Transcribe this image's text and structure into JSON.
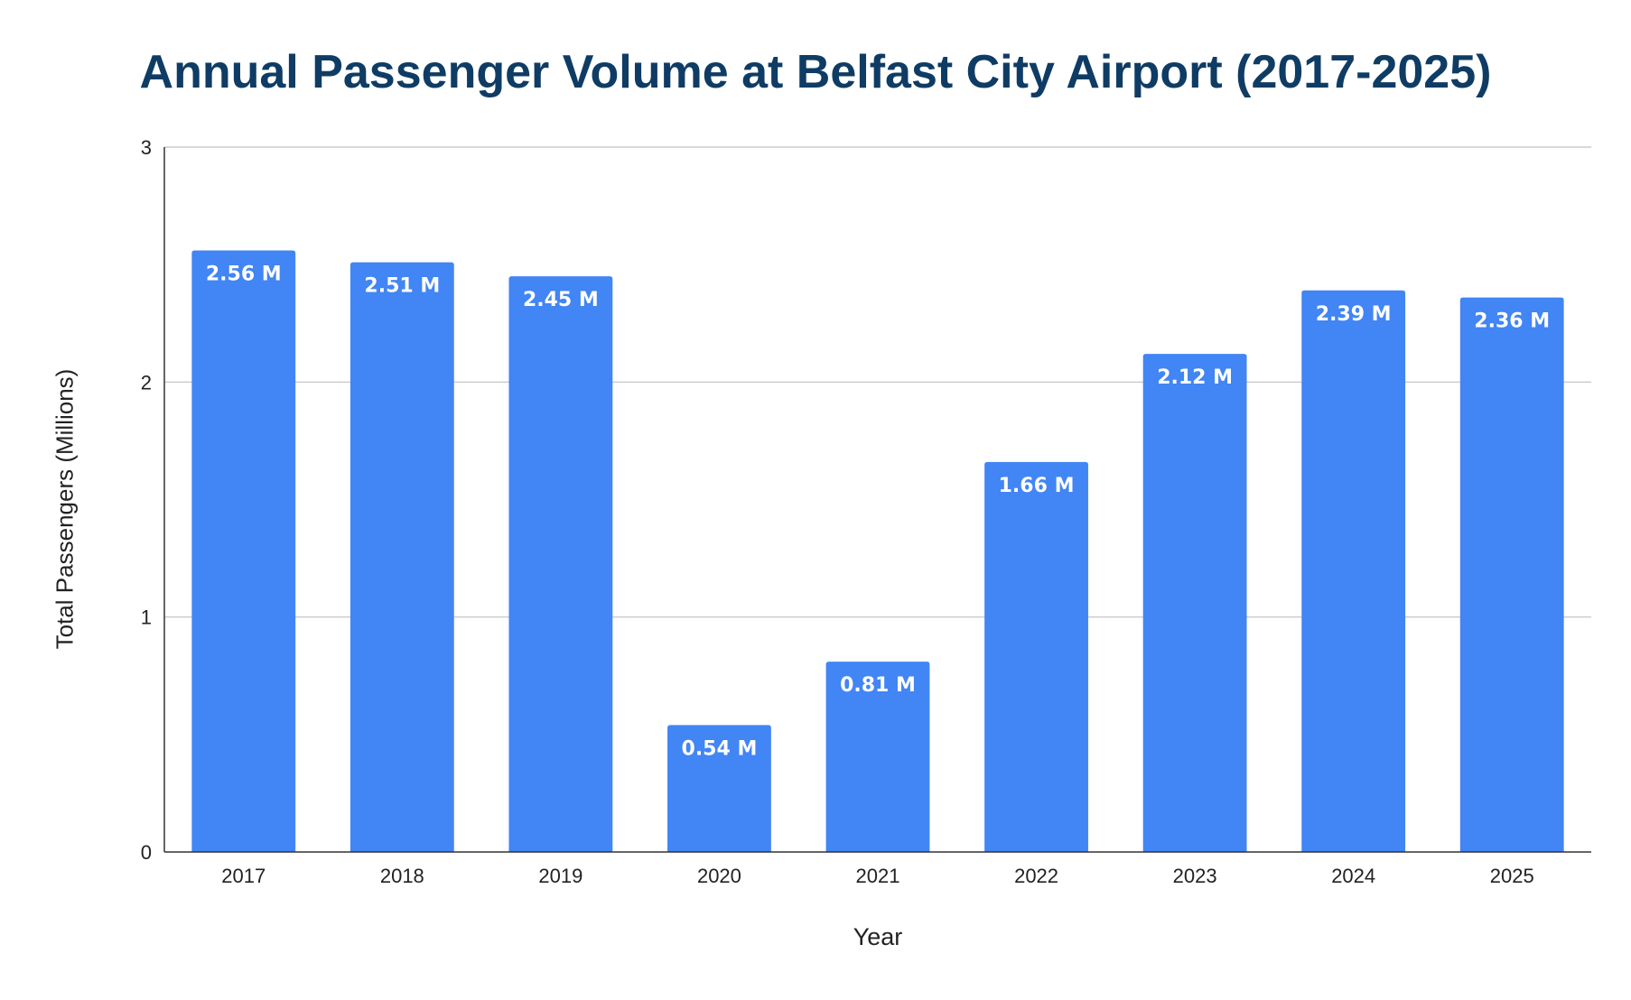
{
  "chart_data": {
    "type": "bar",
    "title": "Annual Passenger Volume at Belfast City Airport (2017-2025)",
    "xlabel": "Year",
    "ylabel": "Total Passengers (Millions)",
    "categories": [
      "2017",
      "2018",
      "2019",
      "2020",
      "2021",
      "2022",
      "2023",
      "2024",
      "2025"
    ],
    "values": [
      2.56,
      2.51,
      2.45,
      0.54,
      0.81,
      1.66,
      2.12,
      2.39,
      2.36
    ],
    "data_labels": [
      "2.56 M",
      "2.51 M",
      "2.45 M",
      "0.54 M",
      "0.81 M",
      "1.66 M",
      "2.12 M",
      "2.39 M",
      "2.36 M"
    ],
    "ylim": [
      0,
      3
    ],
    "yticks": [
      0,
      1,
      2,
      3
    ],
    "ytick_labels": [
      "0",
      "1",
      "2",
      "3"
    ],
    "grid": true,
    "legend": "none",
    "bar_color": "#4285f4",
    "title_color": "#0f3c64"
  }
}
